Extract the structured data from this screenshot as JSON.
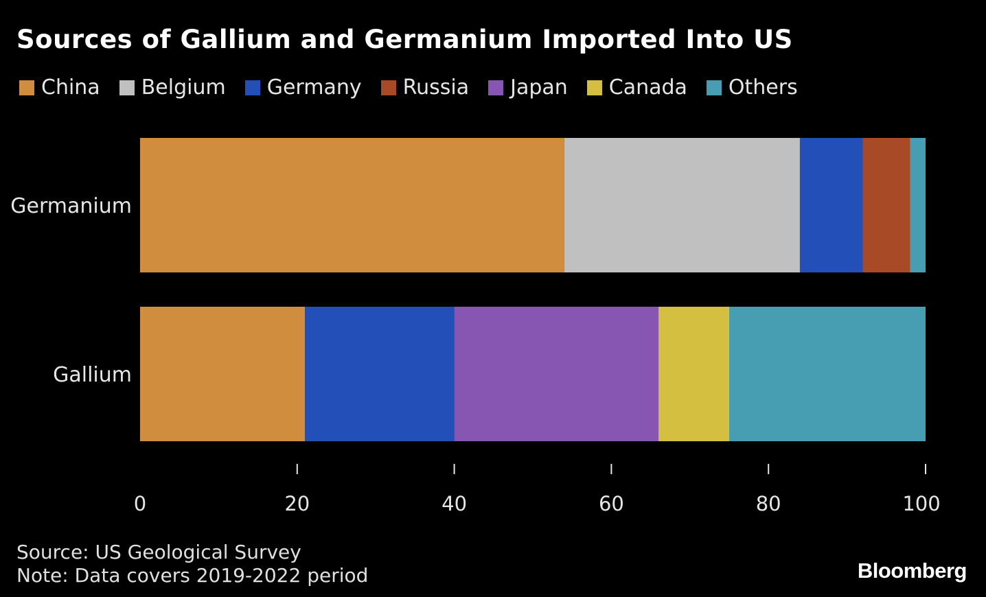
{
  "header": {
    "title": "Sources of Gallium and Germanium Imported Into US"
  },
  "chart_data": {
    "type": "bar",
    "orientation": "horizontal",
    "stacked": true,
    "categories": [
      "Germanium",
      "Gallium"
    ],
    "series": [
      {
        "name": "China",
        "color": "#d08d3e",
        "values": [
          54,
          21
        ]
      },
      {
        "name": "Belgium",
        "color": "#c0c0c0",
        "values": [
          30,
          0
        ]
      },
      {
        "name": "Germany",
        "color": "#2250b8",
        "values": [
          8,
          19
        ]
      },
      {
        "name": "Russia",
        "color": "#a94a27",
        "values": [
          6,
          0
        ]
      },
      {
        "name": "Japan",
        "color": "#8756b2",
        "values": [
          0,
          26
        ]
      },
      {
        "name": "Canada",
        "color": "#d4bf40",
        "values": [
          0,
          9
        ]
      },
      {
        "name": "Others",
        "color": "#479eb2",
        "values": [
          2,
          25
        ]
      }
    ],
    "xlim": [
      0,
      100
    ],
    "xticks": [
      0,
      20,
      40,
      60,
      80,
      100
    ],
    "grid": false,
    "legend_position": "top-left"
  },
  "footer": {
    "source": "Source: US Geological Survey",
    "note": "Note: Data covers 2019-2022 period",
    "brand": "Bloomberg"
  }
}
